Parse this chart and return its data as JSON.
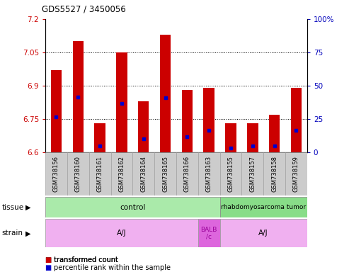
{
  "title": "GDS5527 / 3450056",
  "samples": [
    "GSM738156",
    "GSM738160",
    "GSM738161",
    "GSM738162",
    "GSM738164",
    "GSM738165",
    "GSM738166",
    "GSM738163",
    "GSM738155",
    "GSM738157",
    "GSM738158",
    "GSM738159"
  ],
  "bar_tops": [
    6.97,
    7.1,
    6.73,
    7.05,
    6.83,
    7.13,
    6.88,
    6.89,
    6.73,
    6.73,
    6.77,
    6.89
  ],
  "blue_markers": [
    6.76,
    6.85,
    6.63,
    6.82,
    6.66,
    6.845,
    6.67,
    6.7,
    6.62,
    6.63,
    6.63,
    6.7
  ],
  "ymin": 6.6,
  "ymax": 7.2,
  "yticks_left": [
    6.6,
    6.75,
    6.9,
    7.05,
    7.2
  ],
  "yticks_right": [
    0,
    25,
    50,
    75,
    100
  ],
  "bar_color": "#cc0000",
  "blue_color": "#0000cc",
  "bar_width": 0.5,
  "tissue_labels": [
    "control",
    "rhabdomyosarcoma tumor"
  ],
  "tissue_color_ctrl": "#aaeaaa",
  "tissue_color_rhab": "#88dd88",
  "strain_labels": [
    "A/J",
    "BALB\n/c",
    "A/J"
  ],
  "strain_color_aj": "#f0b0f0",
  "strain_color_balb": "#dd66dd",
  "legend1": "transformed count",
  "legend2": "percentile rank within the sample",
  "title_color": "#000000",
  "left_axis_color": "#cc0000",
  "right_axis_color": "#0000bb",
  "grid_color": "#000000",
  "background_color": "#ffffff",
  "xticklabel_bg": "#cccccc"
}
